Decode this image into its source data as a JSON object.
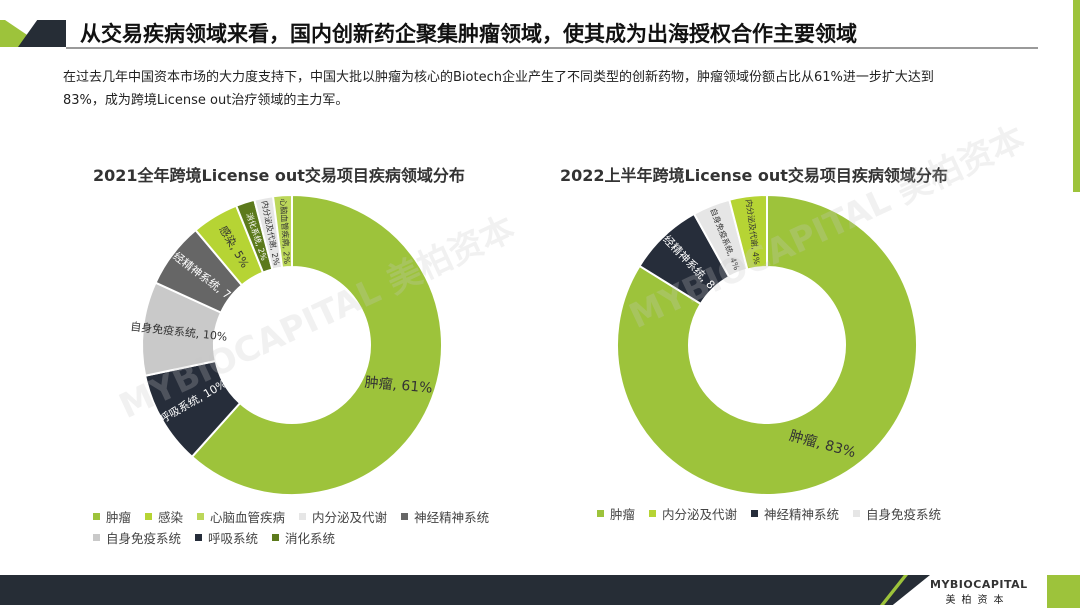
{
  "header": {
    "title": "从交易疾病领域来看，国内创新药企聚集肿瘤领域，使其成为出海授权合作主要领域"
  },
  "description": "在过去几年中国资本市场的大力度支持下，中国大批以肿瘤为核心的Biotech企业产生了不同类型的创新药物，肿瘤领域份额占比从61%进一步扩大达到83%，成为跨境License  out治疗领域的主力军。",
  "watermark": "MYBIOCAPITAL 美柏资本",
  "chart_data": [
    {
      "type": "pie",
      "title": "2021全年跨境License  out交易项目疾病领域分布",
      "slices": [
        {
          "name": "肿瘤",
          "value": 61,
          "label": "肿瘤, 61%",
          "color": "#9dc33b"
        },
        {
          "name": "呼吸系统",
          "value": 10,
          "label": "呼吸系统, 10%",
          "color": "#262d3a"
        },
        {
          "name": "自身免疫系统",
          "value": 10,
          "label": "自身免疫系统, 10%",
          "color": "#c9c9c9"
        },
        {
          "name": "神经精神系统",
          "value": 7,
          "label": "神经精神系统, 7%",
          "color": "#666666"
        },
        {
          "name": "感染",
          "value": 5,
          "label": "感染, 5%",
          "color": "#b6d434"
        },
        {
          "name": "消化系统",
          "value": 2,
          "label": "消化系统, 2%",
          "color": "#5c7a1c"
        },
        {
          "name": "内分泌及代谢",
          "value": 2,
          "label": "内分泌及代谢, 2%",
          "color": "#e6e6e6"
        },
        {
          "name": "心脑血管疾病",
          "value": 2,
          "label": "心脑血管疾病, 2%",
          "color": "#bcd75a"
        }
      ],
      "legend": [
        "肿瘤",
        "感染",
        "心脑血管疾病",
        "内分泌及代谢",
        "神经精神系统",
        "自身免疫系统",
        "呼吸系统",
        "消化系统"
      ],
      "legend_position": "bottom"
    },
    {
      "type": "pie",
      "title": "2022上半年跨境License  out交易项目疾病领域分布",
      "slices": [
        {
          "name": "肿瘤",
          "value": 83,
          "label": "肿瘤, 83%",
          "color": "#9dc33b"
        },
        {
          "name": "神经精神系统",
          "value": 8,
          "label": "神经精神系统, 8%",
          "color": "#262d3a"
        },
        {
          "name": "自身免疫系统",
          "value": 4,
          "label": "自身免疫系统, 4%",
          "color": "#e6e6e6"
        },
        {
          "name": "内分泌及代谢",
          "value": 4,
          "label": "内分泌及代谢, 4%",
          "color": "#b6d434"
        }
      ],
      "legend": [
        "肿瘤",
        "内分泌及代谢",
        "神经精神系统",
        "自身免疫系统"
      ],
      "legend_position": "bottom"
    }
  ],
  "footer": {
    "logo_en": "MYBIOCAPITAL",
    "logo_cn": "美柏资本"
  }
}
